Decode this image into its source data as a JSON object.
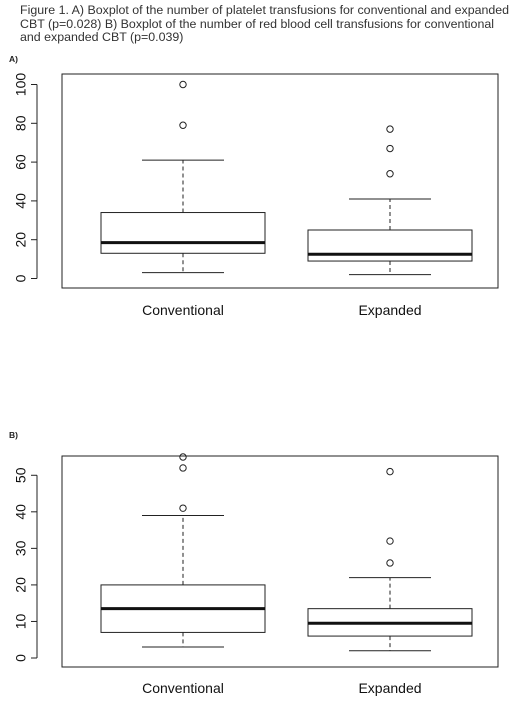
{
  "figure": {
    "caption": "Figure 1. A) Boxplot of the number of platelet transfusions for conventional and expanded CBT (p=0.028) B) Boxplot of the number of red blood cell transfusions for conventional and expanded CBT (p=0.039)",
    "panel_a_label": "A)",
    "panel_b_label": "B)"
  },
  "chart_data": [
    {
      "type": "boxplot",
      "panel": "A)",
      "categories": [
        "Conventional",
        "Expanded"
      ],
      "ylim": [
        0,
        100
      ],
      "yticks": [
        0,
        20,
        40,
        60,
        80,
        100
      ],
      "grid": false,
      "boxes": [
        {
          "label": "Conventional",
          "whisker_low": 3,
          "q1": 13,
          "median": 18.5,
          "q3": 34,
          "whisker_high": 61,
          "outliers": [
            79,
            100
          ]
        },
        {
          "label": "Expanded",
          "whisker_low": 2,
          "q1": 9,
          "median": 12.5,
          "q3": 25,
          "whisker_high": 41,
          "outliers": [
            54,
            67,
            77
          ]
        }
      ]
    },
    {
      "type": "boxplot",
      "panel": "B)",
      "categories": [
        "Conventional",
        "Expanded"
      ],
      "ylim": [
        0,
        55
      ],
      "yticks": [
        0,
        10,
        20,
        30,
        40,
        50
      ],
      "grid": false,
      "boxes": [
        {
          "label": "Conventional",
          "whisker_low": 3,
          "q1": 7,
          "median": 13.5,
          "q3": 20,
          "whisker_high": 39,
          "outliers": [
            41,
            52,
            55
          ]
        },
        {
          "label": "Expanded",
          "whisker_low": 2,
          "q1": 6,
          "median": 9.5,
          "q3": 13.5,
          "whisker_high": 22,
          "outliers": [
            26,
            32,
            51
          ]
        }
      ]
    }
  ]
}
